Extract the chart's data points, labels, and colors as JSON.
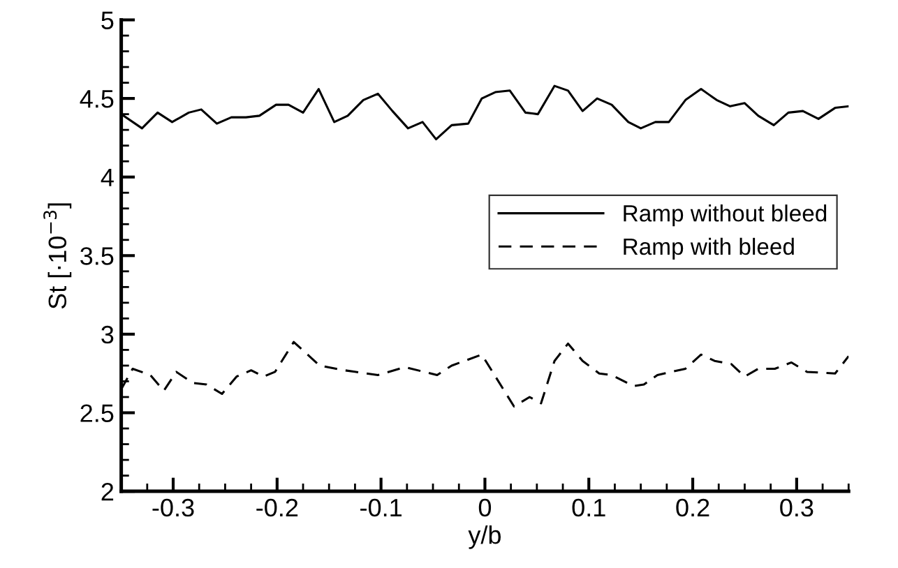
{
  "chart_data": {
    "type": "line",
    "xlabel": "y/b",
    "ylabel": "St [·10$^{−3}$]",
    "xlim": [
      -0.35,
      0.35
    ],
    "ylim": [
      2,
      5
    ],
    "xticks": [
      {
        "value": -0.35,
        "label": null
      },
      {
        "value": -0.325,
        "label": null
      },
      -0.3,
      {
        "value": -0.275,
        "label": null
      },
      {
        "value": -0.25,
        "label": null
      },
      {
        "value": -0.225,
        "label": null
      },
      -0.2,
      {
        "value": -0.175,
        "label": null
      },
      {
        "value": -0.15,
        "label": null
      },
      {
        "value": -0.125,
        "label": null
      },
      -0.1,
      {
        "value": -0.075,
        "label": null
      },
      {
        "value": -0.05,
        "label": null
      },
      {
        "value": -0.025,
        "label": null
      },
      0,
      {
        "value": 0.025,
        "label": null
      },
      {
        "value": 0.05,
        "label": null
      },
      {
        "value": 0.075,
        "label": null
      },
      0.1,
      {
        "value": 0.125,
        "label": null
      },
      {
        "value": 0.15,
        "label": null
      },
      {
        "value": 0.175,
        "label": null
      },
      0.2,
      {
        "value": 0.225,
        "label": null
      },
      {
        "value": 0.25,
        "label": null
      },
      {
        "value": 0.275,
        "label": null
      },
      0.3,
      {
        "value": 0.325,
        "label": null
      },
      {
        "value": 0.35,
        "label": null
      }
    ],
    "yticks": [
      2,
      {
        "value": 2.1,
        "label": null
      },
      {
        "value": 2.2,
        "label": null
      },
      {
        "value": 2.3,
        "label": null
      },
      {
        "value": 2.4,
        "label": null
      },
      2.5,
      {
        "value": 2.6,
        "label": null
      },
      {
        "value": 2.7,
        "label": null
      },
      {
        "value": 2.8,
        "label": null
      },
      {
        "value": 2.9,
        "label": null
      },
      3,
      {
        "value": 3.1,
        "label": null
      },
      {
        "value": 3.2,
        "label": null
      },
      {
        "value": 3.3,
        "label": null
      },
      {
        "value": 3.4,
        "label": null
      },
      3.5,
      {
        "value": 3.6,
        "label": null
      },
      {
        "value": 3.7,
        "label": null
      },
      {
        "value": 3.8,
        "label": null
      },
      {
        "value": 3.9,
        "label": null
      },
      4,
      {
        "value": 4.1,
        "label": null
      },
      {
        "value": 4.2,
        "label": null
      },
      {
        "value": 4.3,
        "label": null
      },
      {
        "value": 4.4,
        "label": null
      },
      4.5,
      {
        "value": 4.6,
        "label": null
      },
      {
        "value": 4.7,
        "label": null
      },
      {
        "value": 4.8,
        "label": null
      },
      {
        "value": 4.9,
        "label": null
      },
      5
    ],
    "legend": "right",
    "grid": false,
    "marker": "none",
    "series": [
      {
        "name": "Ramp without bleed",
        "color": "#000000",
        "line_style": "solid",
        "x": [
          -0.35,
          -0.33,
          -0.315,
          -0.301,
          -0.285,
          -0.273,
          -0.258,
          -0.244,
          -0.23,
          -0.217,
          -0.201,
          -0.189,
          -0.175,
          -0.16,
          -0.145,
          -0.132,
          -0.117,
          -0.103,
          -0.089,
          -0.074,
          -0.06,
          -0.047,
          -0.032,
          -0.016,
          -0.003,
          0.01,
          0.024,
          0.039,
          0.051,
          0.067,
          0.08,
          0.094,
          0.108,
          0.122,
          0.138,
          0.15,
          0.164,
          0.177,
          0.193,
          0.208,
          0.223,
          0.236,
          0.25,
          0.263,
          0.278,
          0.292,
          0.306,
          0.321,
          0.337,
          0.35
        ],
        "values": [
          4.4,
          4.31,
          4.41,
          4.35,
          4.41,
          4.43,
          4.34,
          4.38,
          4.38,
          4.39,
          4.46,
          4.46,
          4.41,
          4.56,
          4.35,
          4.39,
          4.49,
          4.53,
          4.42,
          4.31,
          4.35,
          4.24,
          4.33,
          4.34,
          4.5,
          4.54,
          4.55,
          4.41,
          4.4,
          4.58,
          4.55,
          4.42,
          4.5,
          4.46,
          4.35,
          4.31,
          4.35,
          4.35,
          4.49,
          4.56,
          4.49,
          4.45,
          4.47,
          4.39,
          4.33,
          4.41,
          4.42,
          4.37,
          4.44,
          4.45
        ]
      },
      {
        "name": "Ramp with bleed",
        "color": "#000000",
        "line_style": "dashed",
        "x": [
          -0.35,
          -0.339,
          -0.322,
          -0.309,
          -0.297,
          -0.281,
          -0.268,
          -0.253,
          -0.239,
          -0.225,
          -0.213,
          -0.202,
          -0.184,
          -0.159,
          -0.135,
          -0.103,
          -0.077,
          -0.046,
          -0.032,
          -0.003,
          0.028,
          0.043,
          0.054,
          0.067,
          0.08,
          0.094,
          0.11,
          0.122,
          0.143,
          0.153,
          0.166,
          0.193,
          0.208,
          0.221,
          0.237,
          0.25,
          0.263,
          0.279,
          0.295,
          0.31,
          0.337,
          0.35
        ],
        "values": [
          2.65,
          2.78,
          2.74,
          2.64,
          2.76,
          2.69,
          2.68,
          2.62,
          2.73,
          2.77,
          2.73,
          2.76,
          2.95,
          2.8,
          2.77,
          2.74,
          2.79,
          2.74,
          2.8,
          2.87,
          2.54,
          2.6,
          2.56,
          2.83,
          2.94,
          2.83,
          2.75,
          2.74,
          2.67,
          2.68,
          2.74,
          2.78,
          2.87,
          2.83,
          2.81,
          2.73,
          2.78,
          2.78,
          2.82,
          2.76,
          2.75,
          2.86
        ]
      }
    ]
  }
}
